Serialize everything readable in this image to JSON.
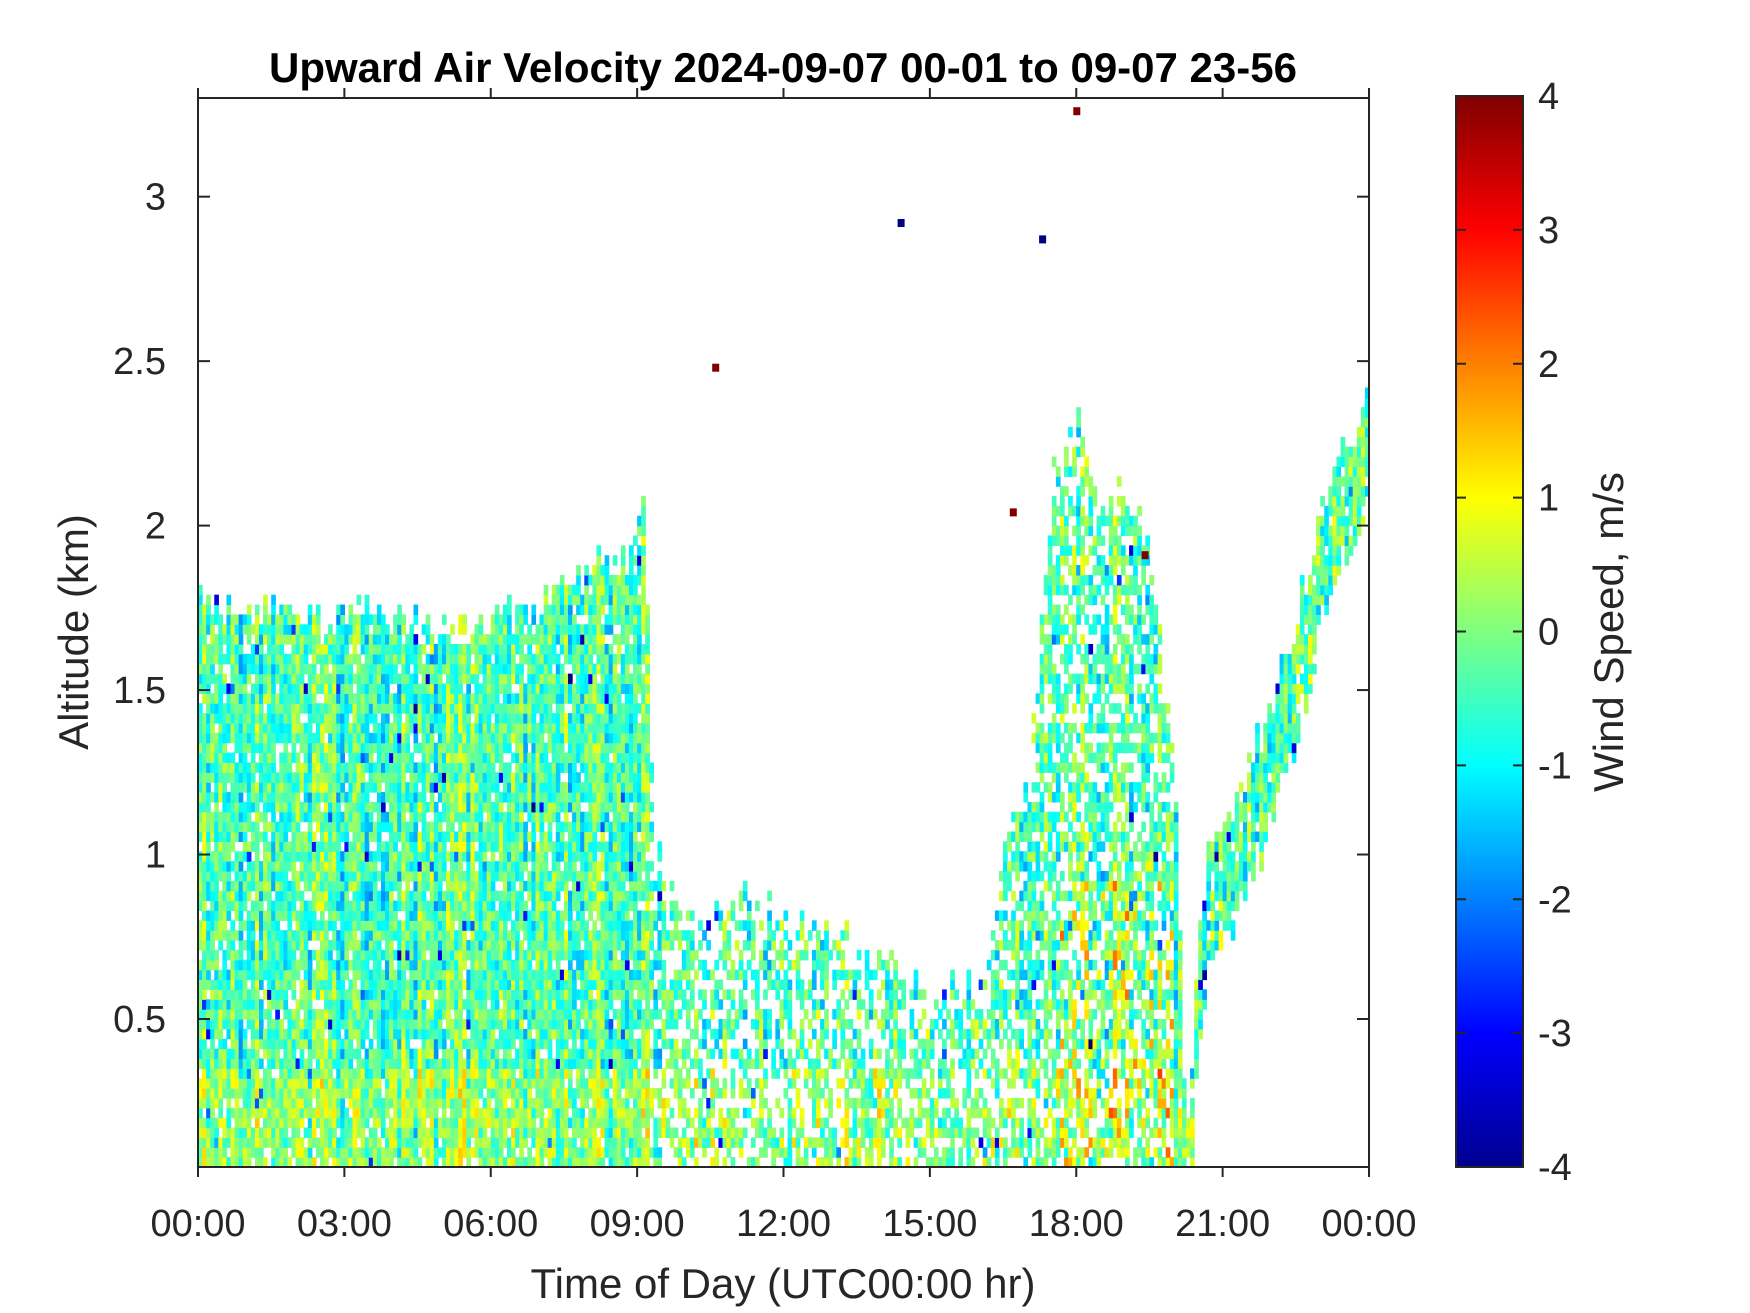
{
  "chart_data": {
    "type": "heatmap",
    "title": "Upward Air Velocity 2024-09-07 00-01 to 09-07 23-56",
    "xlabel": "Time of Day (UTC00:00 hr)",
    "ylabel": "Altitude (km)",
    "colorbar_label": "Wind Speed, m/s",
    "x_unit": "hours of day",
    "xlim": [
      0,
      24
    ],
    "ylim": [
      0.05,
      3.3
    ],
    "clim": [
      -4,
      4
    ],
    "colormap": "jet",
    "x_ticks": [
      0,
      3,
      6,
      9,
      12,
      15,
      18,
      21,
      24
    ],
    "x_tick_labels": [
      "00:00",
      "03:00",
      "06:00",
      "09:00",
      "12:00",
      "15:00",
      "18:00",
      "21:00",
      "00:00"
    ],
    "y_ticks": [
      0.5,
      1,
      1.5,
      2,
      2.5,
      3
    ],
    "y_tick_labels": [
      "0.5",
      "1",
      "1.5",
      "2",
      "2.5",
      "3"
    ],
    "colorbar_ticks": [
      -4,
      -3,
      -2,
      -1,
      0,
      1,
      2,
      3,
      4
    ],
    "colorbar_tick_labels": [
      "-4",
      "-3",
      "-2",
      "-1",
      "0",
      "1",
      "2",
      "3",
      "4"
    ],
    "grid": false,
    "legend": "none",
    "data_top_profile": [
      [
        0.0,
        1.75
      ],
      [
        1.0,
        1.72
      ],
      [
        1.5,
        1.78
      ],
      [
        2.5,
        1.68
      ],
      [
        3.5,
        1.72
      ],
      [
        4.5,
        1.68
      ],
      [
        5.5,
        1.67
      ],
      [
        6.5,
        1.72
      ],
      [
        7.5,
        1.8
      ],
      [
        8.2,
        1.9
      ],
      [
        8.8,
        1.9
      ],
      [
        9.1,
        2.15
      ],
      [
        9.3,
        1.0
      ],
      [
        10.0,
        0.8
      ],
      [
        11.0,
        0.85
      ],
      [
        12.0,
        0.8
      ],
      [
        13.0,
        0.75
      ],
      [
        14.0,
        0.7
      ],
      [
        15.0,
        0.55
      ],
      [
        16.0,
        0.6
      ],
      [
        16.5,
        1.0
      ],
      [
        17.0,
        1.2
      ],
      [
        17.5,
        2.2
      ],
      [
        18.0,
        2.3
      ],
      [
        18.5,
        2.0
      ],
      [
        19.0,
        2.1
      ],
      [
        19.5,
        1.9
      ],
      [
        20.0,
        1.2
      ],
      [
        20.2,
        0.1
      ],
      [
        20.6,
        0.95
      ],
      [
        21.5,
        1.25
      ],
      [
        22.3,
        1.6
      ],
      [
        23.0,
        2.05
      ],
      [
        24.0,
        2.45
      ]
    ],
    "notable_points": [
      {
        "time": 10.6,
        "alt": 2.48,
        "value": 4
      },
      {
        "time": 14.4,
        "alt": 2.92,
        "value": -4
      },
      {
        "time": 16.7,
        "alt": 2.04,
        "value": 4
      },
      {
        "time": 17.3,
        "alt": 2.87,
        "value": -4
      },
      {
        "time": 18.0,
        "alt": 3.26,
        "value": 4
      },
      {
        "time": 19.4,
        "alt": 1.91,
        "value": 4
      }
    ]
  }
}
